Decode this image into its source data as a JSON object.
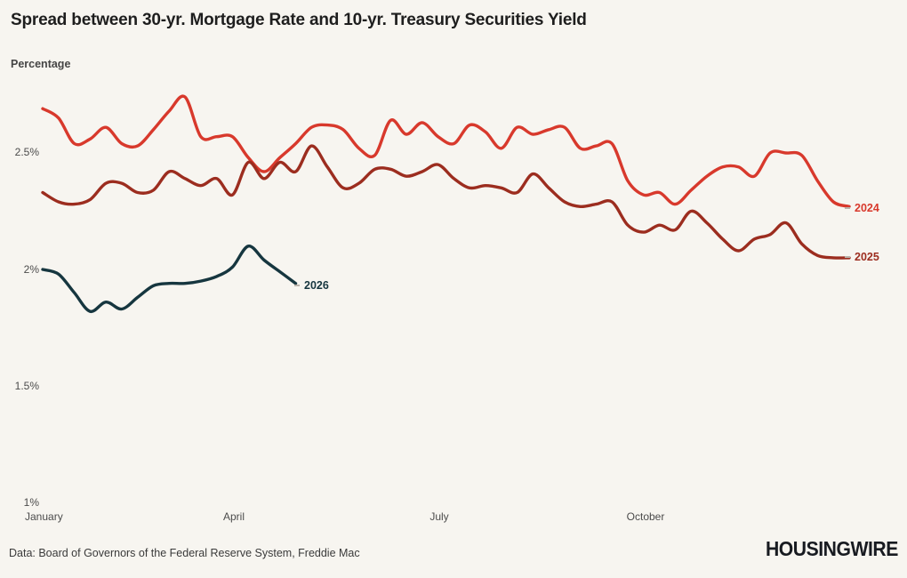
{
  "header": {
    "title": "Spread between 30-yr. Mortgage Rate and 10-yr. Treasury Securities Yield",
    "unit_label": "Percentage"
  },
  "axes": {
    "y_ticks": [
      "2.5%",
      "2%",
      "1.5%",
      "1%"
    ],
    "x_ticks": [
      "January",
      "April",
      "July",
      "October"
    ]
  },
  "chart_data": {
    "type": "line",
    "title": "Spread between 30-yr. Mortgage Rate and 10-yr. Treasury Securities Yield",
    "ylabel": "Percentage",
    "ylim": [
      1.0,
      2.78
    ],
    "y_tick_values": [
      1.0,
      1.5,
      2.0,
      2.5
    ],
    "x_unit": "weekly observations, January through December",
    "x_tick_labels": [
      "January",
      "April",
      "July",
      "October"
    ],
    "grid": false,
    "legend_position": "line-end-labels",
    "series": [
      {
        "name": "2024",
        "color": "#d8392c",
        "values": [
          2.69,
          2.65,
          2.54,
          2.56,
          2.61,
          2.54,
          2.53,
          2.6,
          2.68,
          2.74,
          2.57,
          2.57,
          2.57,
          2.48,
          2.42,
          2.48,
          2.54,
          2.61,
          2.62,
          2.6,
          2.52,
          2.49,
          2.64,
          2.58,
          2.63,
          2.57,
          2.54,
          2.62,
          2.59,
          2.52,
          2.61,
          2.58,
          2.6,
          2.61,
          2.52,
          2.53,
          2.54,
          2.38,
          2.32,
          2.33,
          2.28,
          2.34,
          2.4,
          2.44,
          2.44,
          2.4,
          2.5,
          2.5,
          2.49,
          2.38,
          2.29,
          2.27
        ]
      },
      {
        "name": "2025",
        "color": "#9c2d1f",
        "values": [
          2.33,
          2.29,
          2.28,
          2.3,
          2.37,
          2.37,
          2.33,
          2.34,
          2.42,
          2.39,
          2.36,
          2.39,
          2.32,
          2.46,
          2.39,
          2.46,
          2.42,
          2.53,
          2.44,
          2.35,
          2.37,
          2.43,
          2.43,
          2.4,
          2.42,
          2.45,
          2.39,
          2.35,
          2.36,
          2.35,
          2.33,
          2.41,
          2.35,
          2.29,
          2.27,
          2.28,
          2.29,
          2.19,
          2.16,
          2.19,
          2.17,
          2.25,
          2.2,
          2.13,
          2.08,
          2.13,
          2.15,
          2.2,
          2.11,
          2.06,
          2.05,
          2.05
        ]
      },
      {
        "name": "2026",
        "color": "#16363f",
        "values": [
          2.0,
          1.98,
          1.9,
          1.82,
          1.86,
          1.83,
          1.88,
          1.93,
          1.94,
          1.94,
          1.95,
          1.97,
          2.01,
          2.1,
          2.04,
          1.99,
          1.94
        ]
      }
    ]
  },
  "footer": {
    "source": "Data: Board of Governors of the Federal Reserve System, Freddie Mac",
    "brand": "HOUSINGWIRE"
  }
}
